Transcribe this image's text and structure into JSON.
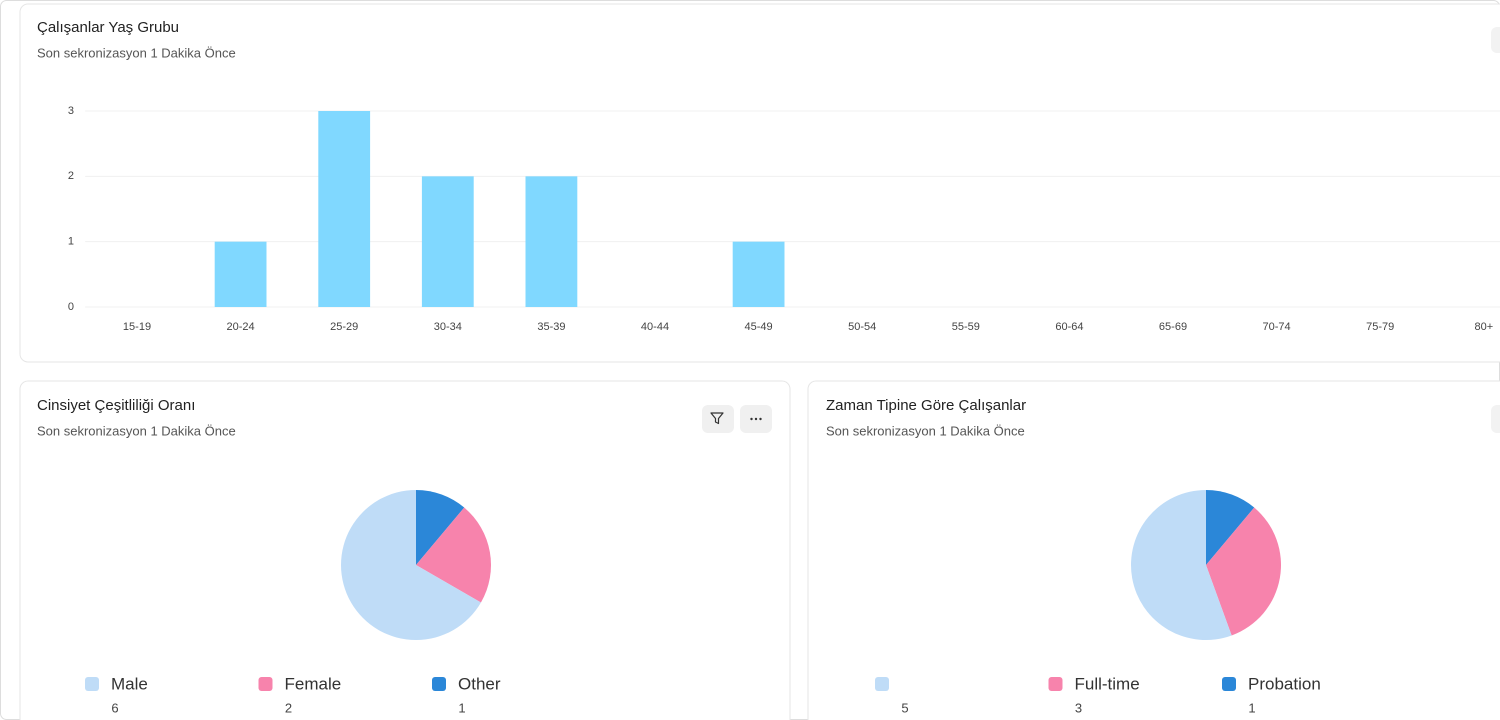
{
  "chart_data": [
    {
      "type": "bar",
      "title": "Çalışanlar Yaş Grubu",
      "subtitle": "Son sekronizasyon 1 Dakika Önce",
      "categories": [
        "15-19",
        "20-24",
        "25-29",
        "30-34",
        "35-39",
        "40-44",
        "45-49",
        "50-54",
        "55-59",
        "60-64",
        "65-69",
        "70-74",
        "75-79",
        "80+"
      ],
      "values": [
        0,
        1,
        3,
        2,
        2,
        0,
        1,
        0,
        0,
        0,
        0,
        0,
        0,
        0
      ],
      "color": "#80d8ff",
      "ylim": [
        0,
        3
      ],
      "yticks": [
        0,
        1,
        2,
        3
      ],
      "grid": true
    },
    {
      "type": "pie",
      "title": "Cinsiyet Çeşitliliği Oranı",
      "subtitle": "Son sekronizasyon 1 Dakika Önce",
      "categories": [
        "Male",
        "Female",
        "Other"
      ],
      "values": [
        6,
        2,
        1
      ],
      "colors": [
        "#bfdcf7",
        "#f783ac",
        "#2b87d8"
      ]
    },
    {
      "type": "pie",
      "title": "Zaman Tipine Göre Çalışanlar",
      "subtitle": "Son sekronizasyon 1 Dakika Önce",
      "categories": [
        null,
        "Full-time",
        "Probation"
      ],
      "values": [
        5,
        3,
        1
      ],
      "colors": [
        "#bfdcf7",
        "#f783ac",
        "#2b87d8"
      ]
    }
  ]
}
